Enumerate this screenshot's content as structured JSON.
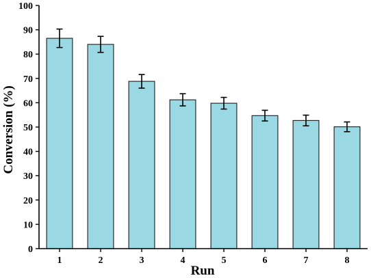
{
  "chart_data": {
    "type": "bar",
    "categories": [
      "1",
      "2",
      "3",
      "4",
      "5",
      "6",
      "7",
      "8"
    ],
    "values": [
      86.5,
      84.0,
      68.8,
      61.2,
      59.8,
      54.7,
      52.7,
      50.1
    ],
    "errors": [
      3.8,
      3.3,
      2.8,
      2.5,
      2.4,
      2.2,
      2.2,
      2.0
    ],
    "xlabel": "Run",
    "ylabel": "Conversion (%)",
    "ylim": [
      0,
      100
    ],
    "yticks": [
      0,
      10,
      20,
      30,
      40,
      50,
      60,
      70,
      80,
      90,
      100
    ],
    "grid": false,
    "colors": {
      "bar_fill": "#9ad9e3",
      "bar_stroke": "#1a1a1a",
      "axis": "#000000"
    }
  }
}
